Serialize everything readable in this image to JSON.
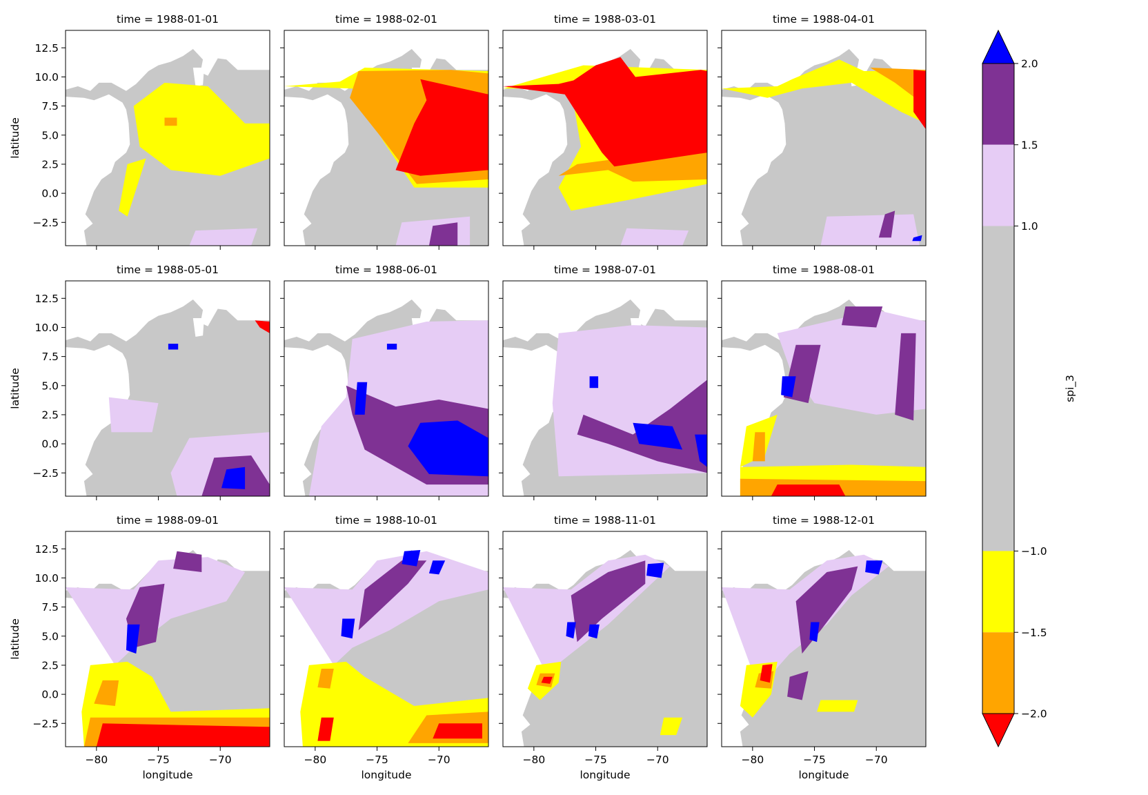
{
  "chart_data": {
    "type": "heatmap",
    "title": "",
    "variable": "spi_3",
    "layout": "faceted grid, 3 rows x 4 columns, shared axes",
    "xlabel": "longitude",
    "ylabel": "latitude",
    "xlim": [
      -82.5,
      -66.0
    ],
    "ylim": [
      -4.5,
      14.0
    ],
    "x_ticks": [
      -80,
      -75,
      -70
    ],
    "x_tick_labels": [
      "−80",
      "−75",
      "−70"
    ],
    "y_ticks": [
      12.5,
      10.0,
      7.5,
      5.0,
      2.5,
      0.0,
      -2.5
    ],
    "y_tick_labels": [
      "12.5",
      "10.0",
      "7.5",
      "5.0",
      "2.5",
      "0.0",
      "−2.5"
    ],
    "panels": [
      {
        "title": "time = 1988-01-01",
        "dominant": "near normal",
        "notes": "extensive yellow (-1.5 to -1.0) in central-east region"
      },
      {
        "title": "time = 1988-02-01",
        "dominant": "dry",
        "notes": "orange and red block over north-east, yellow fringes"
      },
      {
        "title": "time = 1988-03-01",
        "dominant": "very dry",
        "notes": "large red area in east and along northern coast"
      },
      {
        "title": "time = 1988-04-01",
        "dominant": "near normal",
        "notes": "yellow/orange in north, red at north-east edge"
      },
      {
        "title": "time = 1988-05-01",
        "dominant": "near normal",
        "notes": "purple and blue patch in south-east"
      },
      {
        "title": "time = 1988-06-01",
        "dominant": "wet",
        "notes": "broad purple band with blue core in south-east"
      },
      {
        "title": "time = 1988-07-01",
        "dominant": "wet",
        "notes": "lavender widespread, purple band with blue patches"
      },
      {
        "title": "time = 1988-08-01",
        "dominant": "mixed",
        "notes": "lavender north, drought (yellow/orange/red) in south"
      },
      {
        "title": "time = 1988-09-01",
        "dominant": "mixed",
        "notes": "strong red/orange drought along southern edge"
      },
      {
        "title": "time = 1988-10-01",
        "dominant": "mixed",
        "notes": "yellow/orange south, blue cells in north"
      },
      {
        "title": "time = 1988-11-01",
        "dominant": "near normal",
        "notes": "mostly gray, small dry patch on west coast"
      },
      {
        "title": "time = 1988-12-01",
        "dominant": "near normal",
        "notes": "mostly gray, small red/yellow patch on west coast"
      }
    ],
    "colorbar": {
      "label": "spi_3",
      "ticks": [
        2.0,
        1.5,
        1.0,
        -1.0,
        -1.5,
        -2.0
      ],
      "tick_labels": [
        "2.0",
        "1.5",
        "1.0",
        "−1.0",
        "−1.5",
        "−2.0"
      ],
      "bands": [
        {
          "range": [
            1.5,
            2.0
          ],
          "color": "#7f3294"
        },
        {
          "range": [
            1.0,
            1.5
          ],
          "color": "#e6ccf5"
        },
        {
          "range": [
            -1.0,
            1.0
          ],
          "color": "#c8c8c8"
        },
        {
          "range": [
            -1.5,
            -1.0
          ],
          "color": "#ffff00"
        },
        {
          "range": [
            -2.0,
            -1.5
          ],
          "color": "#ffa500"
        }
      ],
      "extend_max_color": "#0000ff",
      "extend_min_color": "#ff0000"
    },
    "colors": {
      "gray": "#c8c8c8",
      "lavender": "#e6ccf5",
      "purple": "#7f3294",
      "blue": "#0000ff",
      "yellow": "#ffff00",
      "orange": "#ffa500",
      "red": "#ff0000"
    }
  }
}
